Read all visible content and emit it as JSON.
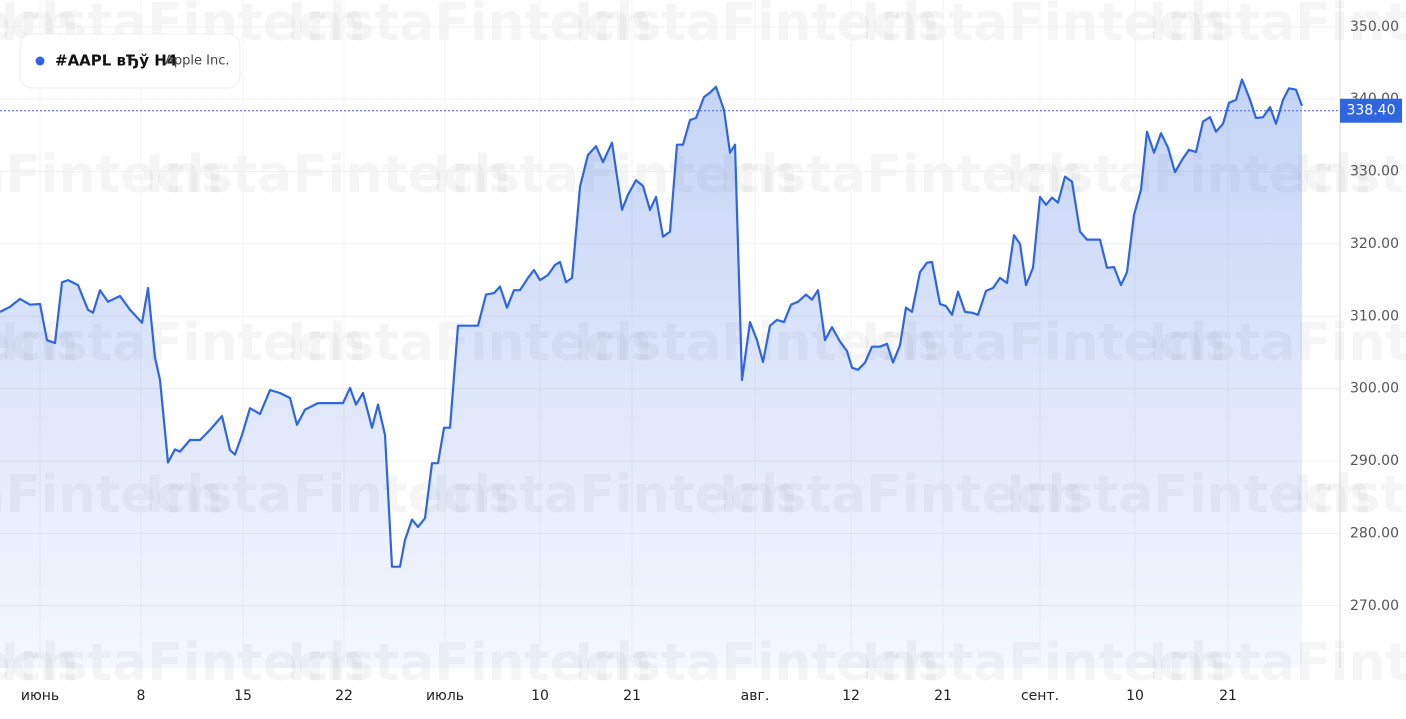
{
  "chart_data": {
    "type": "line",
    "title": "#AAPL вЂў H4",
    "subtitle": "Apple Inc.",
    "watermark": "InstaFintech",
    "color": "#2f66e0",
    "x": [
      0,
      1,
      2,
      3,
      4,
      4.7,
      5.5,
      6.2,
      6.8,
      7.8,
      8.8,
      9.3,
      10,
      10.8,
      12,
      13,
      14.2,
      14.8,
      15.5,
      16,
      16.8,
      17.5,
      18,
      19,
      20,
      21,
      22.2,
      23,
      23.5,
      24.2,
      25,
      26,
      27,
      28,
      29,
      29.7,
      30.5,
      31.8,
      33,
      34.3,
      35,
      35.6,
      36.3,
      37.2,
      37.8,
      38.5,
      39.2,
      40,
      40.5,
      41.2,
      41.8,
      42.5,
      43.2,
      43.8,
      44.4,
      45,
      45.8,
      47.8,
      48.6,
      49.4,
      50,
      50.7,
      51.4,
      52,
      52.8,
      53.4,
      54,
      54.8,
      55.5,
      56,
      56.6,
      57.2,
      58,
      58.8,
      59.6,
      60.3,
      61.2,
      62.2,
      62.8,
      63.6,
      64.3,
      65,
      65.6,
      66.3,
      67,
      67.7,
      68.3,
      69,
      69.6,
      70.4,
      71,
      71.6,
      72.4,
      73,
      73.5,
      74.2,
      75,
      75.7,
      76.3,
      77,
      77.7,
      78.4,
      79.1,
      79.8,
      80.6,
      81.2,
      81.8,
      82.5,
      83.2,
      84,
      84.7,
      85.2,
      85.8,
      86.5,
      87.2,
      88,
      88.7,
      89.3,
      90,
      90.6,
      91.2,
      92,
      92.7,
      93.2,
      94,
      94.6,
      95.2,
      95.8,
      96.5,
      97.2,
      97.8,
      98.6,
      99.3,
      100,
      100.7,
      101.4,
      102,
      102.6,
      103.3,
      104,
      104.6,
      105.2,
      105.8,
      106.5,
      107.2,
      108,
      108.7,
      109.4,
      110,
      110.7,
      111.4,
      112.1,
      112.7,
      113.4,
      114.1,
      114.7,
      115.4,
      116.1,
      116.8,
      117.5,
      118.2,
      118.9,
      119.6,
      120.3,
      121,
      121.6,
      122.3,
      122.9,
      123.6,
      124.2,
      124.9,
      125.6,
      126.3,
      127,
      127.6,
      128.3,
      128.9,
      129.6,
      130.2
    ],
    "values": [
      310.6,
      311.3,
      312.4,
      311.6,
      311.7,
      306.7,
      306.3,
      314.7,
      315.0,
      314.3,
      310.9,
      310.5,
      313.6,
      312.0,
      312.8,
      310.9,
      309.1,
      313.9,
      304.3,
      301.2,
      289.8,
      291.6,
      291.3,
      292.9,
      292.9,
      294.3,
      296.2,
      291.5,
      290.9,
      293.6,
      297.3,
      296.5,
      299.8,
      299.4,
      298.7,
      295.0,
      297.1,
      298.0,
      298.0,
      298.0,
      300.1,
      297.8,
      299.4,
      294.6,
      297.8,
      293.6,
      275.4,
      275.4,
      279.1,
      281.9,
      280.9,
      282.1,
      289.7,
      289.7,
      294.6,
      294.6,
      308.7,
      308.7,
      313.0,
      313.2,
      314.1,
      311.2,
      313.6,
      313.6,
      315.3,
      316.4,
      315.0,
      315.7,
      317.1,
      317.5,
      314.7,
      315.3,
      327.9,
      332.3,
      333.5,
      331.3,
      334.0,
      324.7,
      326.8,
      328.8,
      328.0,
      324.7,
      326.5,
      321.0,
      321.7,
      333.7,
      333.7,
      337.1,
      337.4,
      340.3,
      340.9,
      341.7,
      338.5,
      332.6,
      333.7,
      301.2,
      309.2,
      306.7,
      303.7,
      308.7,
      309.5,
      309.2,
      311.6,
      312.0,
      313.0,
      312.3,
      313.6,
      306.7,
      308.5,
      306.5,
      305.2,
      302.9,
      302.6,
      303.6,
      305.8,
      305.8,
      306.2,
      303.6,
      306.0,
      311.2,
      310.6,
      316.1,
      317.4,
      317.5,
      311.7,
      311.4,
      310.2,
      313.4,
      310.6,
      310.5,
      310.2,
      313.5,
      313.9,
      315.3,
      314.6,
      321.2,
      320.0,
      314.3,
      316.7,
      326.5,
      325.4,
      326.4,
      325.7,
      329.3,
      328.6,
      321.7,
      320.6,
      320.6,
      320.6,
      316.7,
      316.8,
      314.3,
      316.1,
      324.0,
      327.5,
      335.5,
      332.6,
      335.3,
      333.3,
      329.9,
      331.6,
      333.0,
      332.7,
      336.9,
      337.5,
      335.5,
      336.6,
      339.5,
      339.9,
      342.7,
      340.3,
      337.4,
      337.5,
      338.9,
      336.6,
      339.9,
      341.5,
      341.3,
      339.1
    ],
    "xlim": [
      0,
      134
    ],
    "xticks": [
      {
        "value": 4,
        "label": "июнь"
      },
      {
        "value": 14.1,
        "label": "8"
      },
      {
        "value": 24.3,
        "label": "15"
      },
      {
        "value": 34.4,
        "label": "22"
      },
      {
        "value": 44.5,
        "label": "июль"
      },
      {
        "value": 54,
        "label": "10"
      },
      {
        "value": 63.2,
        "label": "21"
      },
      {
        "value": 75.5,
        "label": "авг."
      },
      {
        "value": 85.1,
        "label": "12"
      },
      {
        "value": 94.3,
        "label": "21"
      },
      {
        "value": 104,
        "label": "сент."
      },
      {
        "value": 113.5,
        "label": "10"
      },
      {
        "value": 122.8,
        "label": "21"
      }
    ],
    "ylim": [
      261.4,
      353.7
    ],
    "yticks": [
      {
        "value": 270,
        "label": "270.00"
      },
      {
        "value": 280,
        "label": "280.00"
      },
      {
        "value": 290,
        "label": "290.00"
      },
      {
        "value": 300,
        "label": "300.00"
      },
      {
        "value": 310,
        "label": "310.00"
      },
      {
        "value": 320,
        "label": "320.00"
      },
      {
        "value": 330,
        "label": "330.00"
      },
      {
        "value": 340,
        "label": "340.00"
      },
      {
        "value": 350,
        "label": "350.00"
      }
    ],
    "last_price": {
      "value": 338.4,
      "label": "338.40"
    },
    "grid": true
  }
}
